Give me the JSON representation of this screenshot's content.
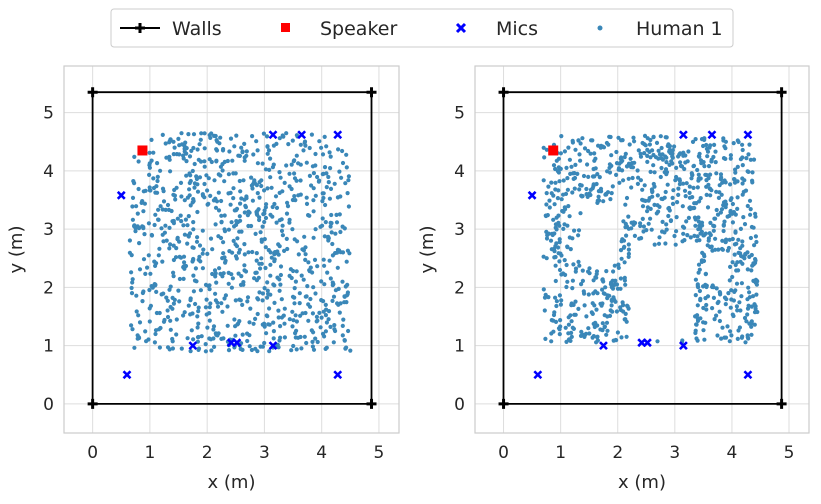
{
  "legend": {
    "items": [
      {
        "label": "Walls",
        "marker": "line-plus",
        "color": "#000000"
      },
      {
        "label": "Speaker",
        "marker": "square",
        "color": "#ff0000"
      },
      {
        "label": "Mics",
        "marker": "x",
        "color": "#0000ff"
      },
      {
        "label": "Human 1",
        "marker": "dot",
        "color": "#3a87b8"
      }
    ],
    "placement": "top-center"
  },
  "chart_data": [
    {
      "type": "scatter",
      "xlabel": "x (m)",
      "ylabel": "y (m)",
      "xlim": [
        -0.5,
        5.35
      ],
      "ylim": [
        -0.5,
        5.8
      ],
      "xticks": [
        0,
        1,
        2,
        3,
        4,
        5
      ],
      "yticks": [
        0,
        1,
        2,
        3,
        4,
        5
      ],
      "grid": true,
      "walls": [
        [
          0,
          0
        ],
        [
          4.87,
          0
        ],
        [
          4.87,
          5.35
        ],
        [
          0,
          5.35
        ],
        [
          0,
          0
        ]
      ],
      "speaker": [
        0.87,
        4.35
      ],
      "mics": [
        [
          0.6,
          0.5
        ],
        [
          1.75,
          1.0
        ],
        [
          2.42,
          1.05
        ],
        [
          2.52,
          1.05
        ],
        [
          3.15,
          1.0
        ],
        [
          4.28,
          0.5
        ],
        [
          0.5,
          3.58
        ],
        [
          3.15,
          4.62
        ],
        [
          3.65,
          4.62
        ],
        [
          4.28,
          4.62
        ]
      ],
      "human_1": {
        "description_region": "uniform fill",
        "region": {
          "x": [
            0.65,
            4.5
          ],
          "y": [
            0.9,
            4.65
          ]
        }
      }
    },
    {
      "type": "scatter",
      "xlabel": "x (m)",
      "ylabel": "y (m)",
      "xlim": [
        -0.5,
        5.35
      ],
      "ylim": [
        -0.5,
        5.8
      ],
      "xticks": [
        0,
        1,
        2,
        3,
        4,
        5
      ],
      "yticks": [
        0,
        1,
        2,
        3,
        4,
        5
      ],
      "grid": true,
      "walls": [
        [
          0,
          0
        ],
        [
          4.87,
          0
        ],
        [
          4.87,
          5.35
        ],
        [
          0,
          5.35
        ],
        [
          0,
          0
        ]
      ],
      "speaker": [
        0.87,
        4.35
      ],
      "mics": [
        [
          0.6,
          0.5
        ],
        [
          1.75,
          1.0
        ],
        [
          2.42,
          1.05
        ],
        [
          2.52,
          1.05
        ],
        [
          3.15,
          1.0
        ],
        [
          4.28,
          0.5
        ],
        [
          0.5,
          3.58
        ],
        [
          3.15,
          4.62
        ],
        [
          3.65,
          4.62
        ],
        [
          4.28,
          4.62
        ]
      ],
      "human_1": {
        "region": {
          "x": [
            0.7,
            4.45
          ],
          "y": [
            1.05,
            4.6
          ]
        },
        "gaps": [
          {
            "x": [
              1.35,
              2.05
            ],
            "y": [
              2.4,
              3.45
            ]
          },
          {
            "x": [
              2.2,
              3.35
            ],
            "y": [
              1.1,
              2.7
            ]
          },
          {
            "x": [
              3.55,
              3.95
            ],
            "y": [
              2.05,
              2.6
            ]
          },
          {
            "x": [
              0.7,
              0.9
            ],
            "y": [
              2.0,
              2.5
            ]
          }
        ]
      }
    }
  ]
}
